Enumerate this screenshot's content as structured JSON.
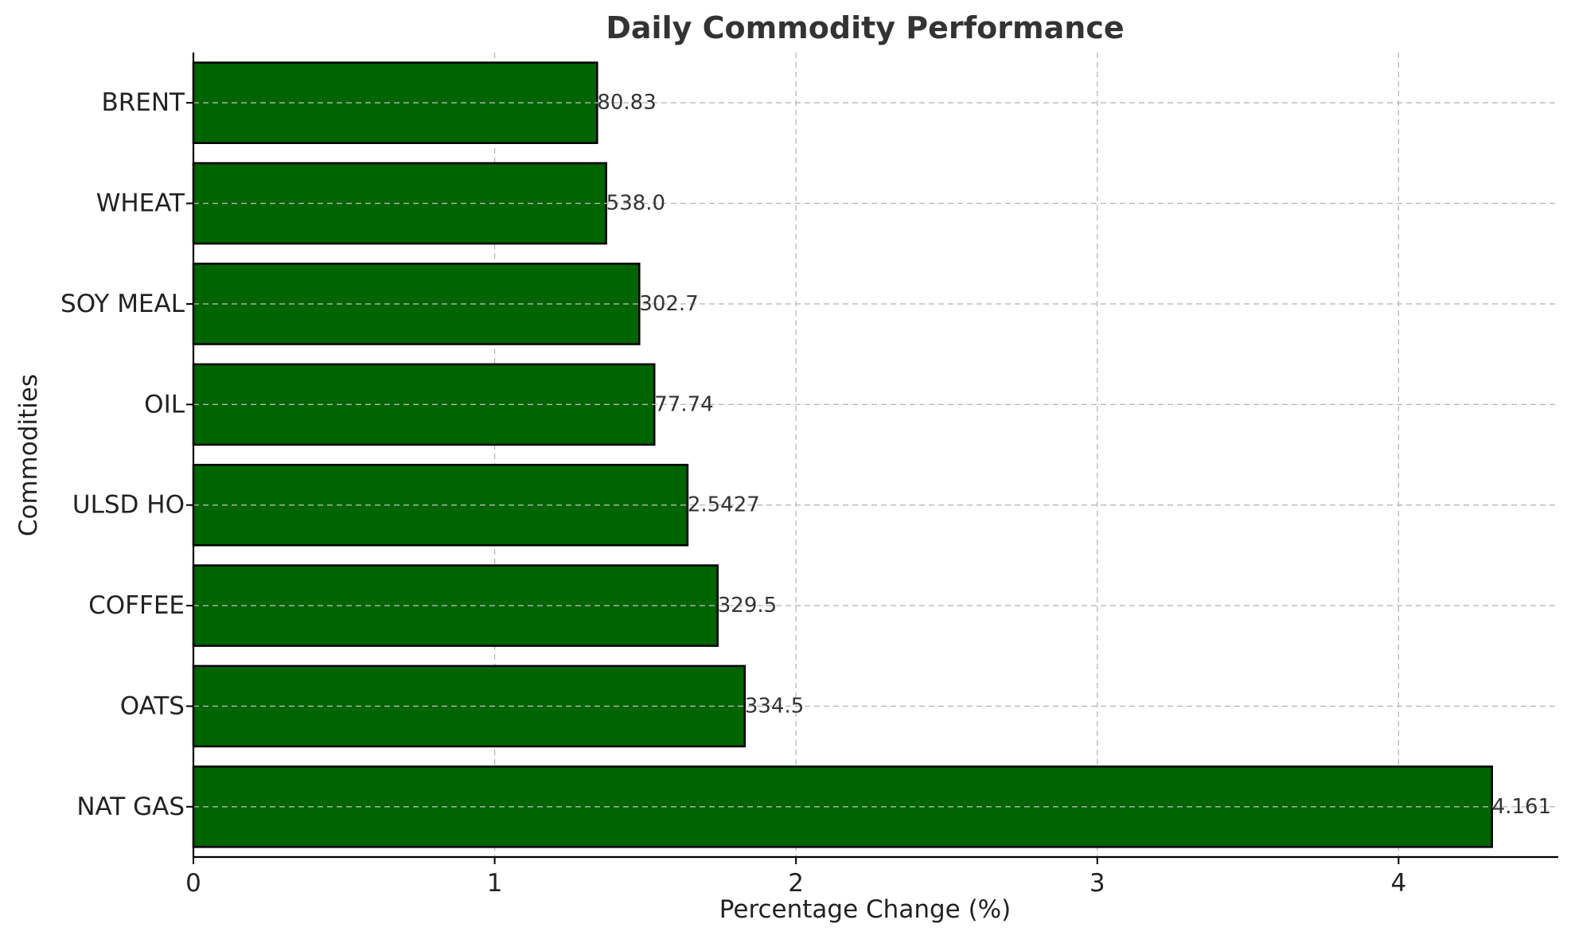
{
  "chart_data": {
    "type": "bar",
    "orientation": "horizontal",
    "title": "Daily Commodity Performance",
    "xlabel": "Percentage Change (%)",
    "ylabel": "Commodities",
    "categories": [
      "NAT GAS",
      "OATS",
      "COFFEE",
      "ULSD HO",
      "OIL",
      "SOY MEAL",
      "WHEAT",
      "BRENT"
    ],
    "values": [
      4.31,
      1.83,
      1.74,
      1.64,
      1.53,
      1.48,
      1.37,
      1.34
    ],
    "value_labels": [
      "4.161",
      "334.5",
      "329.5",
      "2.5427",
      "77.74",
      "302.7",
      "538.0",
      "80.83"
    ],
    "xlim": [
      0,
      4.53
    ],
    "xticks": [
      0,
      1,
      2,
      3,
      4
    ],
    "xtick_labels": [
      "0",
      "1",
      "2",
      "3",
      "4"
    ],
    "grid": true,
    "colors": {
      "bar_fill": "#006400",
      "bar_edge": "#000000"
    }
  }
}
